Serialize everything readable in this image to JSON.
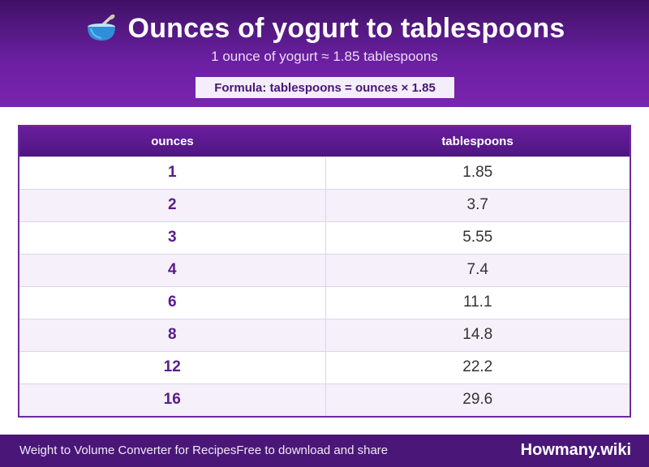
{
  "header": {
    "icon": "bowl-with-spoon-icon",
    "title": "Ounces of yogurt to tablespoons",
    "subtitle": "1 ounce of yogurt ≈ 1.85 tablespoons",
    "formula": "Formula: tablespoons = ounces × 1.85"
  },
  "table": {
    "columns": [
      "ounces",
      "tablespoons"
    ],
    "rows": [
      [
        "1",
        "1.85"
      ],
      [
        "2",
        "3.7"
      ],
      [
        "3",
        "5.55"
      ],
      [
        "4",
        "7.4"
      ],
      [
        "6",
        "11.1"
      ],
      [
        "8",
        "14.8"
      ],
      [
        "12",
        "22.2"
      ],
      [
        "16",
        "29.6"
      ]
    ]
  },
  "footer": {
    "left_text": "Weight to Volume Converter for RecipesFree to download and share",
    "brand": "Howmany.wiki"
  },
  "colors": {
    "header_dark": "#3f1266",
    "header_light": "#7a24ae",
    "accent": "#5b1a8c",
    "row_alt": "#f5f0fa",
    "footer": "#4a1778"
  }
}
